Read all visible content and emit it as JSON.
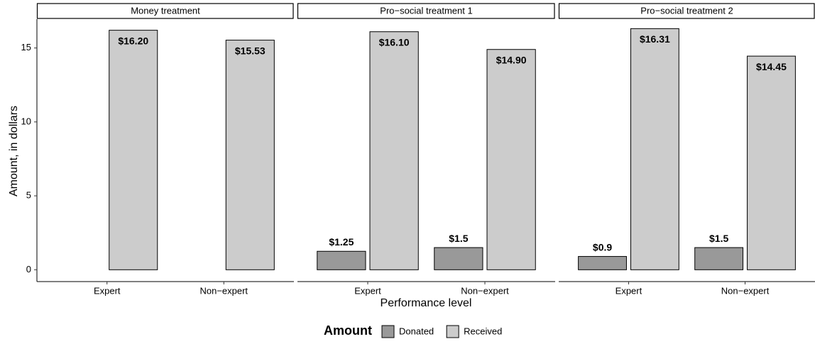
{
  "chart_data": {
    "type": "bar",
    "y_label": "Amount, in dollars",
    "x_label": "Performance level",
    "legend_title": "Amount",
    "ylim": [
      -0.8,
      16.95
    ],
    "yticks": [
      0,
      5,
      10,
      15
    ],
    "categories": [
      "Expert",
      "Non−expert"
    ],
    "series": [
      {
        "name": "Donated",
        "color": "#999999"
      },
      {
        "name": "Received",
        "color": "#cccccc"
      }
    ],
    "facets": [
      {
        "title": "Money treatment",
        "series": [
          {
            "values": [
              0,
              0
            ],
            "value_labels": [
              null,
              null
            ]
          },
          {
            "values": [
              16.2,
              15.53
            ],
            "value_labels": [
              "$16.20",
              "$15.53"
            ]
          }
        ]
      },
      {
        "title": "Pro−social treatment 1",
        "series": [
          {
            "values": [
              1.25,
              1.5
            ],
            "value_labels": [
              "$1.25",
              "$1.5"
            ]
          },
          {
            "values": [
              16.1,
              14.9
            ],
            "value_labels": [
              "$16.10",
              "$14.90"
            ]
          }
        ]
      },
      {
        "title": "Pro−social treatment 2",
        "series": [
          {
            "values": [
              0.9,
              1.5
            ],
            "value_labels": [
              "$0.9",
              "$1.5"
            ]
          },
          {
            "values": [
              16.31,
              14.45
            ],
            "value_labels": [
              "$16.31",
              "$14.45"
            ]
          }
        ]
      }
    ]
  }
}
